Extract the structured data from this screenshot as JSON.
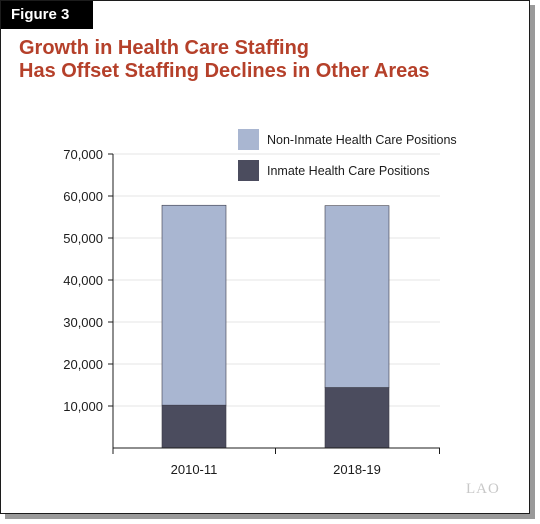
{
  "figure_label": "Figure 3",
  "title_line1": "Growth in Health Care Staffing",
  "title_line2": "Has Offset Staffing Declines in Other Areas",
  "logo_text": "LAO",
  "colors": {
    "title": "#b5402a",
    "non_inmate": "#a9b6d1",
    "inmate": "#4b4c5e",
    "grid": "#e6e6e6"
  },
  "chart_data": {
    "type": "bar",
    "stacked": true,
    "categories": [
      "2010-11",
      "2018-19"
    ],
    "series": [
      {
        "name": "Inmate Health Care Positions",
        "values": [
          10200,
          14400
        ]
      },
      {
        "name": "Non-Inmate Health Care Positions",
        "values": [
          47600,
          43300
        ]
      }
    ],
    "ylim": [
      0,
      70000
    ],
    "yticks": [
      "10,000",
      "20,000",
      "30,000",
      "40,000",
      "50,000",
      "60,000",
      "70,000"
    ],
    "grid": true,
    "legend_position": "top-right"
  }
}
